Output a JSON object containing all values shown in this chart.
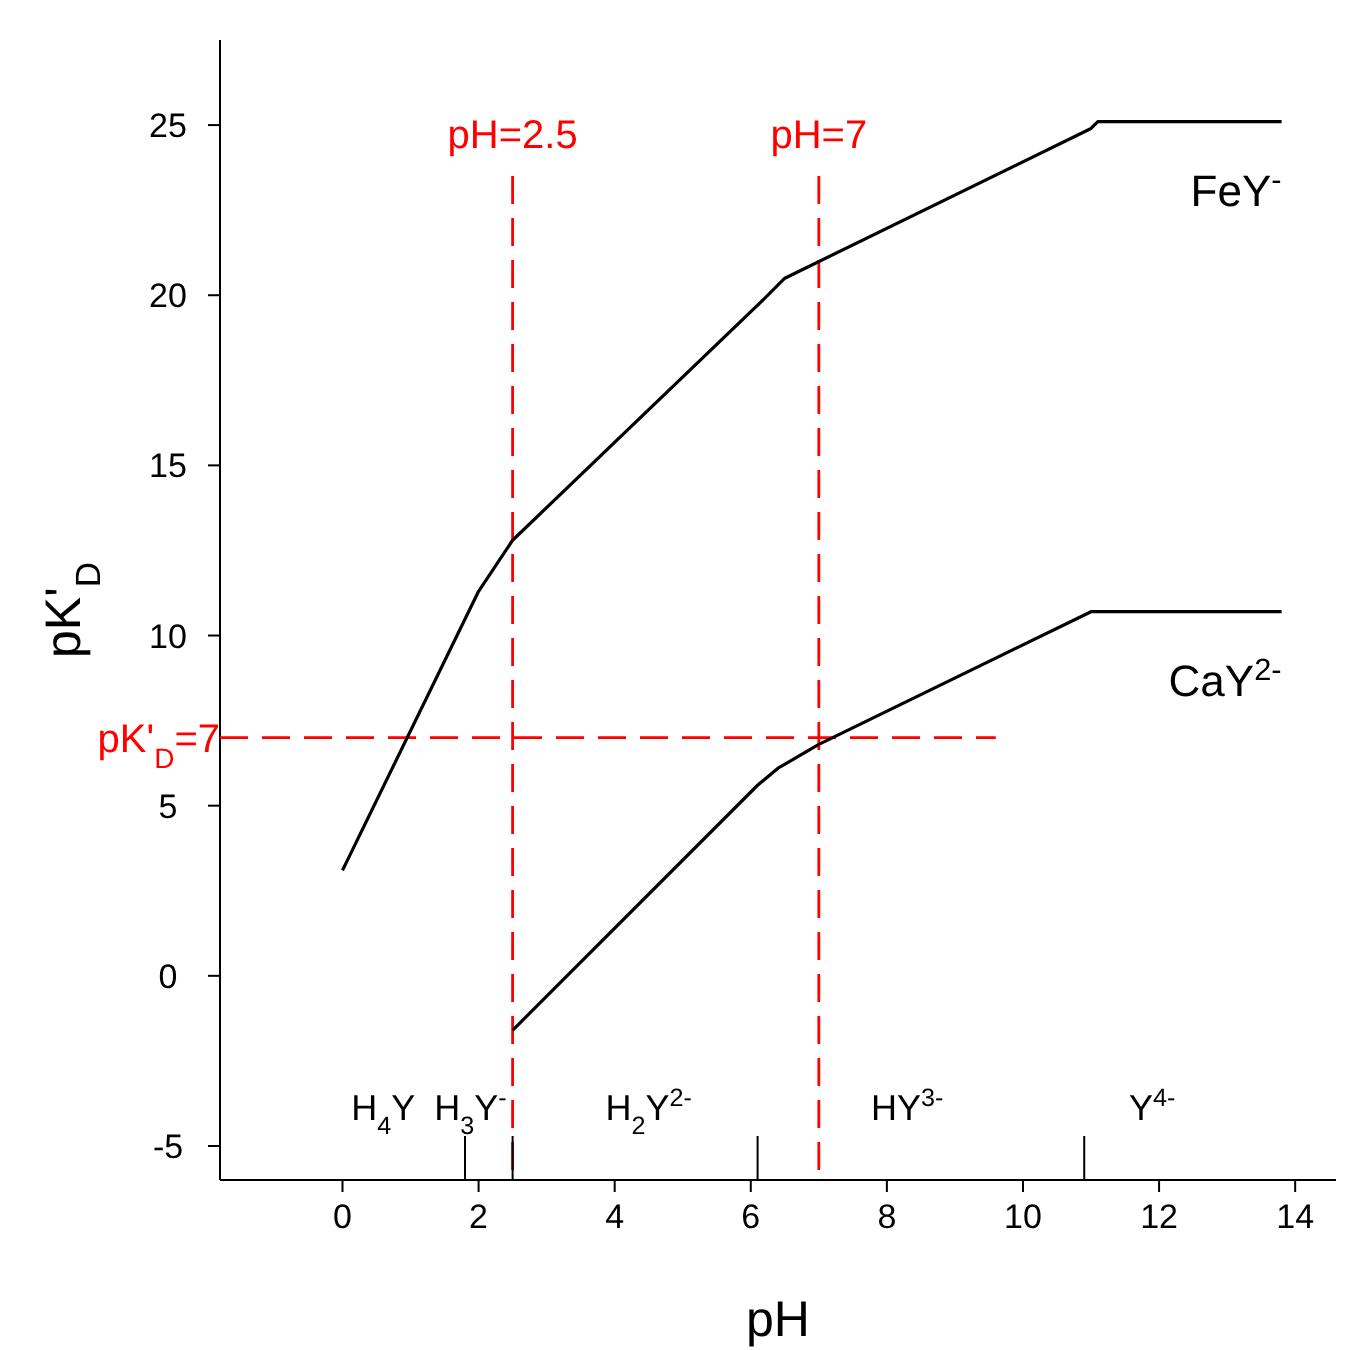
{
  "chart_data": {
    "type": "line",
    "xlabel": "pH",
    "ylabel": "pK'$_{D}$",
    "xlim": [
      -1.8,
      14.6
    ],
    "ylim": [
      -6,
      27.5
    ],
    "xticks": [
      0,
      2,
      4,
      6,
      8,
      10,
      12,
      14
    ],
    "yticks": [
      -5,
      0,
      5,
      10,
      15,
      20,
      25
    ],
    "grid": false,
    "marker": "none",
    "line_style": "solid",
    "series": [
      {
        "name": "FeY$^{-}$",
        "color": "#000000",
        "x": [
          0,
          2,
          2.5,
          6.2,
          6.5,
          11,
          11.1,
          13.8
        ],
        "values": [
          3.1,
          11.3,
          12.8,
          19.9,
          20.5,
          24.9,
          25.1,
          25.1
        ]
      },
      {
        "name": "CaY$^{2-}$",
        "color": "#000000",
        "x": [
          2.5,
          6.1,
          6.4,
          7,
          11,
          13.8
        ],
        "values": [
          -1.6,
          5.6,
          6.1,
          6.8,
          10.7,
          10.7
        ]
      }
    ],
    "ref_lines": [
      {
        "axis": "x",
        "value": 2.5,
        "label": "pH=2.5",
        "color": "#ff0000",
        "line_style": "dashed"
      },
      {
        "axis": "x",
        "value": 7,
        "label": "pH=7",
        "color": "#ff0000",
        "line_style": "dashed"
      },
      {
        "axis": "y",
        "value": 7,
        "label": "pK'$_{D}$=7",
        "color": "#ff0000",
        "line_style": "dashed"
      }
    ],
    "annotations": [
      "H$_{4}$Y",
      "H$_{3}$Y$^{-}$",
      "H$_{2}$Y$^{2-}$",
      "HY$^{3-}$",
      "Y$^{4-}$"
    ]
  }
}
